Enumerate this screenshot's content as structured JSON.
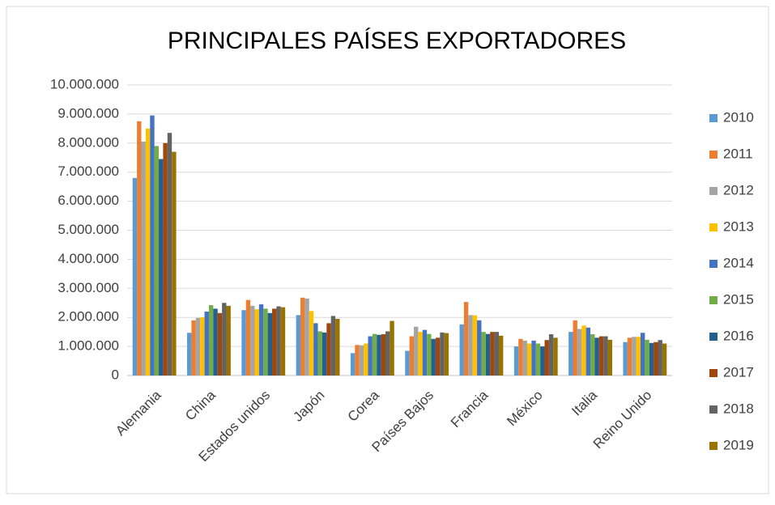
{
  "chart_data": {
    "type": "bar",
    "title": "PRINCIPALES PAÍSES EXPORTADORES",
    "categories": [
      "Alemania",
      "China",
      "Estados unidos",
      "Japón",
      "Corea",
      "Países Bajos",
      "Francia",
      "México",
      "Italia",
      "Reino Unido"
    ],
    "series": [
      {
        "name": "2010",
        "color": "#5b9bd5",
        "values": [
          6800000,
          1470000,
          2250000,
          2080000,
          770000,
          850000,
          1760000,
          1000000,
          1500000,
          1150000
        ]
      },
      {
        "name": "2011",
        "color": "#ed7d31",
        "values": [
          8750000,
          1900000,
          2600000,
          2680000,
          1050000,
          1350000,
          2530000,
          1260000,
          1900000,
          1300000
        ]
      },
      {
        "name": "2012",
        "color": "#a5a5a5",
        "values": [
          8050000,
          1980000,
          2400000,
          2650000,
          1040000,
          1680000,
          2080000,
          1200000,
          1600000,
          1330000
        ]
      },
      {
        "name": "2013",
        "color": "#ffc000",
        "values": [
          8500000,
          2000000,
          2280000,
          2220000,
          1100000,
          1500000,
          2070000,
          1100000,
          1720000,
          1330000
        ]
      },
      {
        "name": "2014",
        "color": "#4472c4",
        "values": [
          8950000,
          2200000,
          2450000,
          1800000,
          1350000,
          1570000,
          1900000,
          1200000,
          1650000,
          1470000
        ]
      },
      {
        "name": "2015",
        "color": "#70ad47",
        "values": [
          7900000,
          2420000,
          2300000,
          1520000,
          1430000,
          1430000,
          1500000,
          1100000,
          1420000,
          1230000
        ]
      },
      {
        "name": "2016",
        "color": "#255e91",
        "values": [
          7450000,
          2300000,
          2150000,
          1480000,
          1400000,
          1260000,
          1430000,
          1000000,
          1300000,
          1120000
        ]
      },
      {
        "name": "2017",
        "color": "#9e480e",
        "values": [
          8000000,
          2150000,
          2300000,
          1800000,
          1420000,
          1300000,
          1500000,
          1220000,
          1350000,
          1150000
        ]
      },
      {
        "name": "2018",
        "color": "#636363",
        "values": [
          8350000,
          2500000,
          2380000,
          2050000,
          1520000,
          1480000,
          1500000,
          1420000,
          1350000,
          1220000
        ]
      },
      {
        "name": "2019",
        "color": "#997300",
        "values": [
          7700000,
          2400000,
          2350000,
          1950000,
          1880000,
          1460000,
          1370000,
          1300000,
          1230000,
          1100000
        ]
      }
    ],
    "ylim": [
      0,
      10000000
    ],
    "yticks": [
      0,
      {
        "value": 1000000,
        "label": "1.000.000"
      },
      {
        "value": 2000000,
        "label": "2.000.000"
      },
      {
        "value": 3000000,
        "label": "3.000.000"
      },
      {
        "value": 4000000,
        "label": "4.000.000"
      },
      {
        "value": 5000000,
        "label": "5.000.000"
      },
      {
        "value": 6000000,
        "label": "6.000.000"
      },
      {
        "value": 7000000,
        "label": "7.000.000"
      },
      {
        "value": 8000000,
        "label": "8.000.000"
      },
      {
        "value": 9000000,
        "label": "9.000.000"
      },
      {
        "value": 10000000,
        "label": "10.000.000"
      }
    ],
    "grid": true,
    "legend": "right"
  }
}
